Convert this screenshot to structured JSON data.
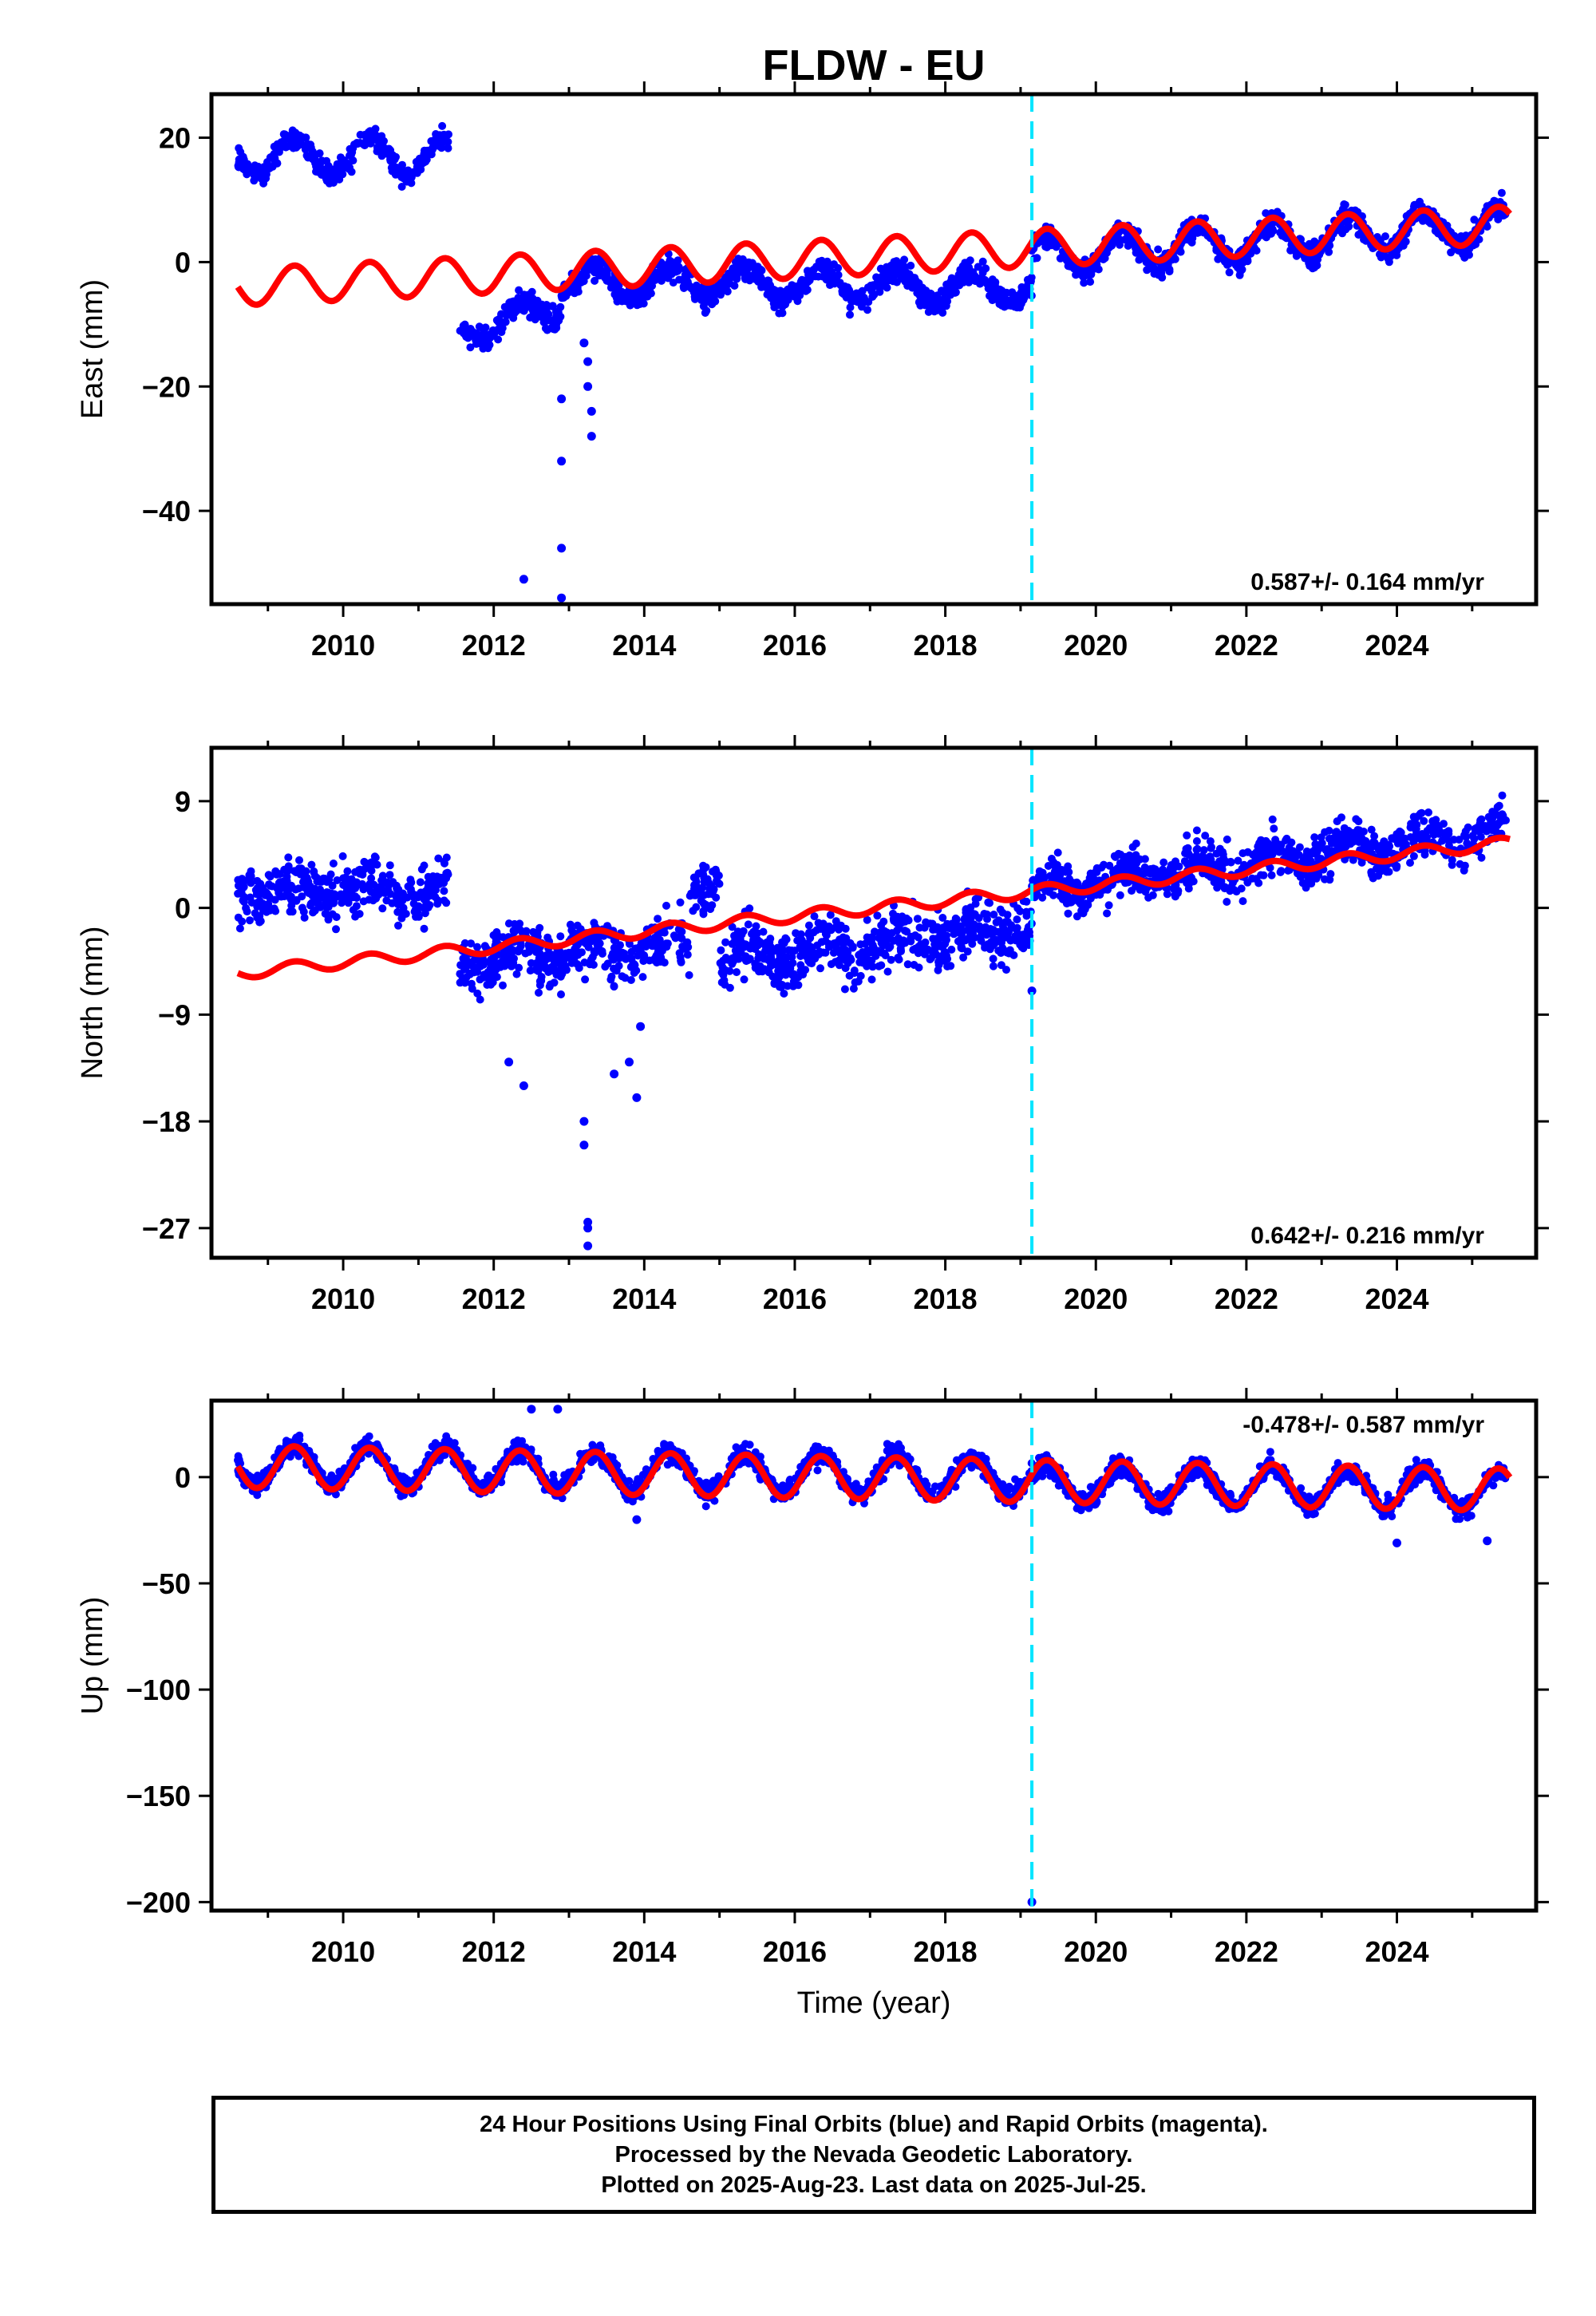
{
  "colors": {
    "observations": "#0000ff",
    "model": "#ff0000",
    "equipment_change": "#00e5ff",
    "frame": "#000000"
  },
  "chart_data": [
    {
      "type": "scatter",
      "title": "FLDW - EU",
      "ylabel": "East (mm)",
      "xlabel": "",
      "rate": "0.587+/- 0.164 mm/yr",
      "xlim": [
        2008.25,
        2025.85
      ],
      "ylim": [
        -55,
        27
      ],
      "yticks": [
        20,
        0,
        -20,
        -40
      ],
      "ytick_labels": [
        "20",
        "0",
        "−20",
        "−40"
      ],
      "xticks": [
        2010,
        2012,
        2014,
        2016,
        2018,
        2020,
        2022,
        2024
      ],
      "vline_x": 2019.15,
      "segments": [
        {
          "x0": 2008.6,
          "x1": 2011.4,
          "y0": 17,
          "y1": 17,
          "amp": 3,
          "scatter": 1.5
        },
        {
          "x0": 2011.55,
          "x1": 2012.9,
          "y0": -11,
          "y1": -7,
          "amp": 2,
          "scatter": 1.6
        },
        {
          "x0": 2012.9,
          "x1": 2019.15,
          "y0": -3,
          "y1": -4,
          "amp": 2.5,
          "scatter": 1.6
        },
        {
          "x0": 2019.15,
          "x1": 2025.45,
          "y0": 1,
          "y1": 6,
          "amp": 3,
          "scatter": 1.6
        }
      ],
      "outliers": [
        {
          "x": 2012.4,
          "y": -51
        },
        {
          "x": 2012.9,
          "y": -54
        },
        {
          "x": 2012.9,
          "y": -46
        },
        {
          "x": 2012.9,
          "y": -32
        },
        {
          "x": 2012.9,
          "y": -22
        },
        {
          "x": 2013.25,
          "y": -16
        },
        {
          "x": 2013.25,
          "y": -20
        },
        {
          "x": 2013.3,
          "y": -24
        },
        {
          "x": 2013.3,
          "y": -28
        },
        {
          "x": 2013.2,
          "y": -13
        }
      ],
      "model": {
        "x0": 2008.6,
        "x1": 2025.5,
        "y0": -4,
        "y1": 6,
        "amp": 3
      }
    },
    {
      "type": "scatter",
      "title": "",
      "ylabel": "North (mm)",
      "xlabel": "",
      "rate": "0.642+/- 0.216 mm/yr",
      "xlim": [
        2008.25,
        2025.85
      ],
      "ylim": [
        -29.5,
        13.5
      ],
      "yticks": [
        9,
        0,
        -9,
        -18,
        -27
      ],
      "ytick_labels": [
        "9",
        "0",
        "−9",
        "−18",
        "−27"
      ],
      "xticks": [
        2010,
        2012,
        2014,
        2016,
        2018,
        2020,
        2022,
        2024
      ],
      "vline_x": 2019.15,
      "segments": [
        {
          "x0": 2008.6,
          "x1": 2011.4,
          "y0": 1.5,
          "y1": 1.5,
          "amp": 0.8,
          "scatter": 1.8
        },
        {
          "x0": 2011.55,
          "x1": 2014.6,
          "y0": -4.5,
          "y1": -3,
          "amp": 0.8,
          "scatter": 2.0
        },
        {
          "x0": 2014.6,
          "x1": 2015.0,
          "y0": 1.5,
          "y1": 2.5,
          "amp": 0.5,
          "scatter": 1.6
        },
        {
          "x0": 2015.0,
          "x1": 2019.15,
          "y0": -4.5,
          "y1": -1.5,
          "amp": 0.8,
          "scatter": 2.0
        },
        {
          "x0": 2019.15,
          "x1": 2025.45,
          "y0": 1.5,
          "y1": 6.5,
          "amp": 0.8,
          "scatter": 1.6
        }
      ],
      "outliers": [
        {
          "x": 2013.25,
          "y": -27
        },
        {
          "x": 2013.25,
          "y": -26.5
        },
        {
          "x": 2013.25,
          "y": -28.5
        },
        {
          "x": 2013.2,
          "y": -20
        },
        {
          "x": 2013.2,
          "y": -18
        },
        {
          "x": 2012.4,
          "y": -15
        },
        {
          "x": 2012.2,
          "y": -13
        },
        {
          "x": 2013.6,
          "y": -14
        },
        {
          "x": 2013.9,
          "y": -16
        },
        {
          "x": 2013.8,
          "y": -13
        },
        {
          "x": 2013.95,
          "y": -10
        },
        {
          "x": 2019.15,
          "y": -7
        }
      ],
      "model": {
        "x0": 2008.6,
        "x1": 2025.5,
        "y0": -5.5,
        "y1": 5.5,
        "amp": 0.5
      }
    },
    {
      "type": "scatter",
      "title": "",
      "ylabel": "Up (mm)",
      "xlabel": "Time (year)",
      "rate": "-0.478+/- 0.587 mm/yr",
      "xlim": [
        2008.25,
        2025.85
      ],
      "ylim": [
        -204,
        36
      ],
      "yticks": [
        0,
        -50,
        -100,
        -150,
        -200
      ],
      "ytick_labels": [
        "0",
        "−50",
        "−100",
        "−150",
        "−200"
      ],
      "xticks": [
        2010,
        2012,
        2014,
        2016,
        2018,
        2020,
        2022,
        2024
      ],
      "vline_x": 2019.15,
      "segments": [
        {
          "x0": 2008.6,
          "x1": 2019.15,
          "y0": 6,
          "y1": 0,
          "amp": 9,
          "scatter": 4
        },
        {
          "x0": 2019.15,
          "x1": 2025.45,
          "y0": -3,
          "y1": -6,
          "amp": 9,
          "scatter": 4
        }
      ],
      "outliers": [
        {
          "x": 2019.15,
          "y": -200
        },
        {
          "x": 2012.5,
          "y": 32
        },
        {
          "x": 2012.85,
          "y": 32
        },
        {
          "x": 2013.9,
          "y": -20
        },
        {
          "x": 2024.0,
          "y": -31
        },
        {
          "x": 2025.2,
          "y": -30
        }
      ],
      "model": {
        "x0": 2008.6,
        "x1": 2025.5,
        "y0": 5,
        "y1": -6,
        "amp": 10
      }
    }
  ],
  "footer": {
    "line1": "24 Hour Positions Using Final Orbits (blue) and Rapid Orbits (magenta).",
    "line2": "Processed by the Nevada Geodetic Laboratory.",
    "line3": "Plotted on 2025-Aug-23. Last data on 2025-Jul-25."
  }
}
